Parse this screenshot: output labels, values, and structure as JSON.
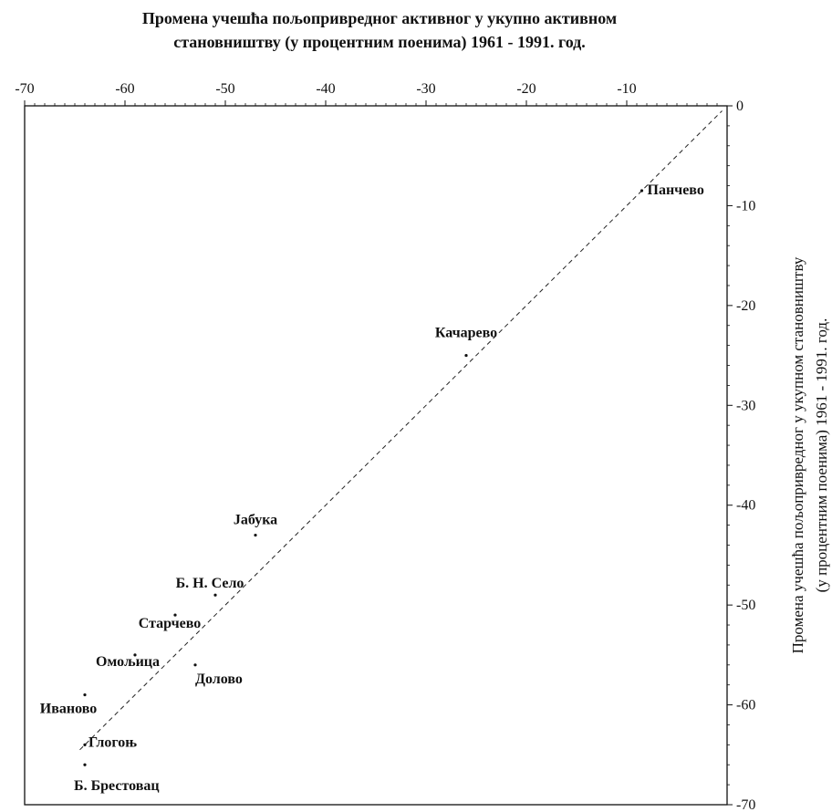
{
  "chart_data": {
    "type": "scatter",
    "title_lines": [
      "Промена учешћа пољопривредног активног у укупно активном",
      "становништву (у процентним поенима) 1961 - 1991. год."
    ],
    "ylabel_lines": [
      "Промена учешћа пољопривредног у укупном становништву",
      "(у процентним поенима) 1961 - 1991. год."
    ],
    "xlabel": "",
    "xlim": [
      -70,
      0
    ],
    "ylim": [
      -70,
      0
    ],
    "x_ticks": [
      -70,
      -60,
      -50,
      -40,
      -30,
      -20,
      -10
    ],
    "y_ticks": [
      0,
      -10,
      -20,
      -30,
      -40,
      -50,
      -60,
      -70
    ],
    "x_axis_position": "top",
    "y_axis_position": "right",
    "grid": false,
    "trendline": {
      "x1": -64.5,
      "y1": -64.5,
      "x2": -0.5,
      "y2": -0.5,
      "style": "dashed"
    },
    "points": [
      {
        "name": "Панчево",
        "x": -8.5,
        "y": -8.5
      },
      {
        "name": "Качарево",
        "x": -26,
        "y": -25
      },
      {
        "name": "Јабука",
        "x": -47,
        "y": -43
      },
      {
        "name": "Б. Н. Село",
        "x": -51,
        "y": -49
      },
      {
        "name": "Старчево",
        "x": -55,
        "y": -51
      },
      {
        "name": "Омољица",
        "x": -59,
        "y": -55
      },
      {
        "name": "Долово",
        "x": -53,
        "y": -56
      },
      {
        "name": "Иваново",
        "x": -64,
        "y": -59
      },
      {
        "name": "Глогоњ",
        "x": -64,
        "y": -64
      },
      {
        "name": "Б. Брестовац",
        "x": -64,
        "y": -66
      }
    ]
  }
}
